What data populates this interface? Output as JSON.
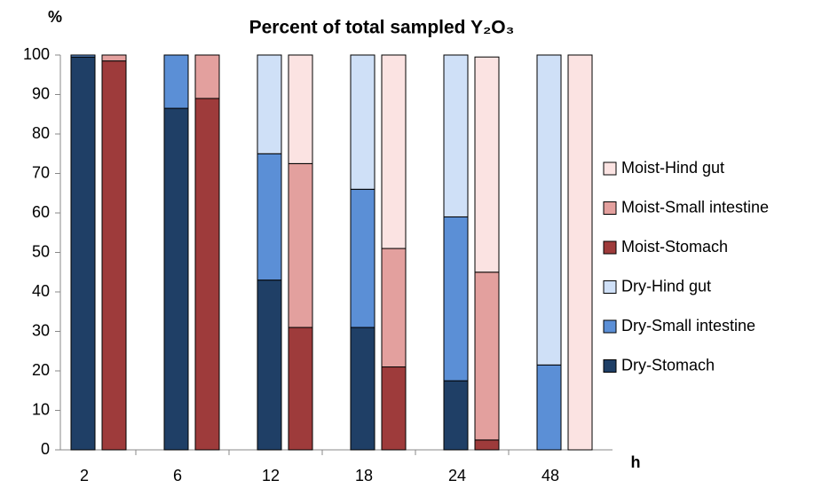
{
  "chart_data": {
    "type": "bar",
    "stacked": true,
    "title": "Percent of total sampled Y₂O₃",
    "y_label": "%",
    "x_label": "h",
    "categories": [
      "2",
      "6",
      "12",
      "18",
      "24",
      "48"
    ],
    "series": [
      {
        "name": "Dry-Stomach",
        "stack": "dry",
        "color": "#1f3f66",
        "values": [
          99.5,
          86.5,
          43,
          31,
          17.5,
          0
        ]
      },
      {
        "name": "Dry-Small intestine",
        "stack": "dry",
        "color": "#5b8fd6",
        "values": [
          0.5,
          13.5,
          32,
          35,
          41.5,
          21.5
        ]
      },
      {
        "name": "Dry-Hind gut",
        "stack": "dry",
        "color": "#cfe0f7",
        "values": [
          0,
          0,
          25,
          34,
          41,
          78.5
        ]
      },
      {
        "name": "Moist-Stomach",
        "stack": "moist",
        "color": "#9e3b3b",
        "values": [
          98.5,
          89,
          31,
          21,
          2.5,
          0
        ]
      },
      {
        "name": "Moist-Small intestine",
        "stack": "moist",
        "color": "#e3a09e",
        "values": [
          1.5,
          11,
          41.5,
          30,
          42.5,
          0
        ]
      },
      {
        "name": "Moist-Hind gut",
        "stack": "moist",
        "color": "#fbe3e2",
        "values": [
          0,
          0,
          27.5,
          49,
          54.5,
          100
        ]
      }
    ],
    "ylim": [
      0,
      100
    ],
    "yticks": [
      0,
      10,
      20,
      30,
      40,
      50,
      60,
      70,
      80,
      90,
      100
    ],
    "legend": "right",
    "legend_order": "reversed"
  }
}
